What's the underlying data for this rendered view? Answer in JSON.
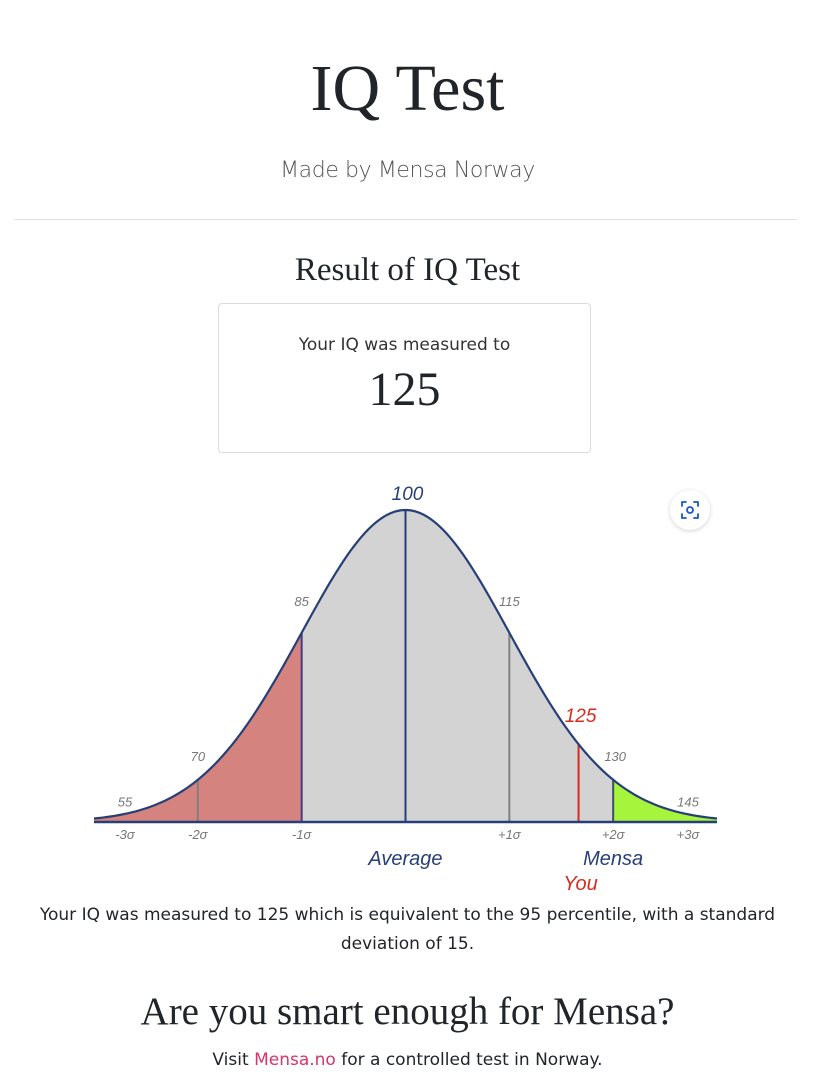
{
  "header": {
    "title": "IQ Test",
    "subtitle": "Made by Mensa Norway"
  },
  "result": {
    "title": "Result of IQ Test",
    "card_label": "Your IQ was measured to",
    "iq_value": "125"
  },
  "controls": {
    "zoom_icon": "focus-zoom-icon"
  },
  "summary": {
    "text": "Your IQ was measured to 125 which is equivalent to the 95 percentile, with a standard deviation of 15."
  },
  "cta": {
    "heading": "Are you smart enough for Mensa?",
    "prefix": "Visit ",
    "link_text": "Mensa.no",
    "suffix": " for a controlled test in Norway."
  },
  "colors": {
    "curve": "#273f78",
    "fill_main": "#d3d3d3",
    "fill_below": "#d5837e",
    "fill_mensa": "#a6f43c",
    "you_marker": "#d62b1f",
    "sigma_lines": "#808080",
    "link": "#d6336c"
  },
  "chart_data": {
    "type": "area",
    "distribution": "normal",
    "mean": 100,
    "sd": 15,
    "xlim": [
      55,
      145
    ],
    "score": 125,
    "mensa_threshold": 130,
    "shaded_below_upto": 85,
    "sigma_ticks": [
      "-3σ",
      "-2σ",
      "-1σ",
      "+1σ",
      "+2σ",
      "+3σ"
    ],
    "value_labels": [
      "55",
      "70",
      "85",
      "100",
      "115",
      "130",
      "145"
    ],
    "annotations": {
      "average": "Average",
      "mensa": "Mensa",
      "you": "You",
      "you_value": "125"
    }
  }
}
